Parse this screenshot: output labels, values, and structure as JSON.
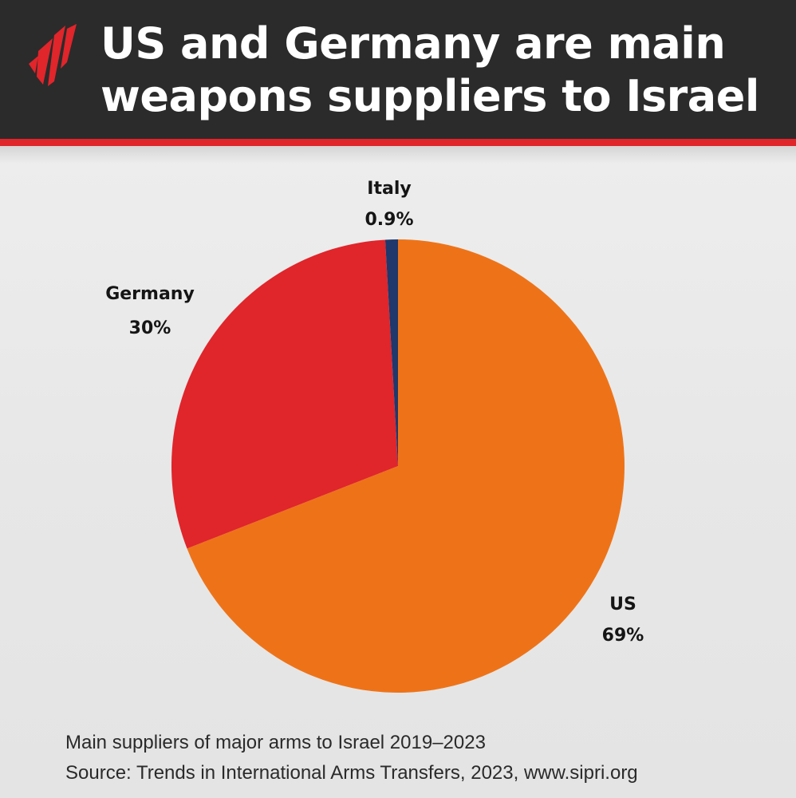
{
  "title_lines": [
    "US and Germany are main",
    "weapons suppliers to Israel"
  ],
  "colors": {
    "header_bg": "#2b2b2b",
    "header_rule": "#e0252b",
    "logo": "#e0252b",
    "US": "#ee7318",
    "Germany": "#e0252b",
    "Italy": "#20386b"
  },
  "logo_icon": "sbs-news-logo-icon",
  "chart_data": {
    "type": "pie",
    "slices": [
      {
        "label": "US",
        "value": 69,
        "value_text": "69%",
        "color": "#ee7318"
      },
      {
        "label": "Germany",
        "value": 30,
        "value_text": "30%",
        "color": "#e0252b"
      },
      {
        "label": "Italy",
        "value": 0.9,
        "value_text": "0.9%",
        "color": "#20386b"
      }
    ],
    "start": "12 o'clock",
    "direction": "clockwise"
  },
  "caption": {
    "line1": "Main suppliers of major arms to Israel 2019–2023",
    "line2": "Source: Trends in International Arms Transfers, 2023,  www.sipri.org"
  }
}
